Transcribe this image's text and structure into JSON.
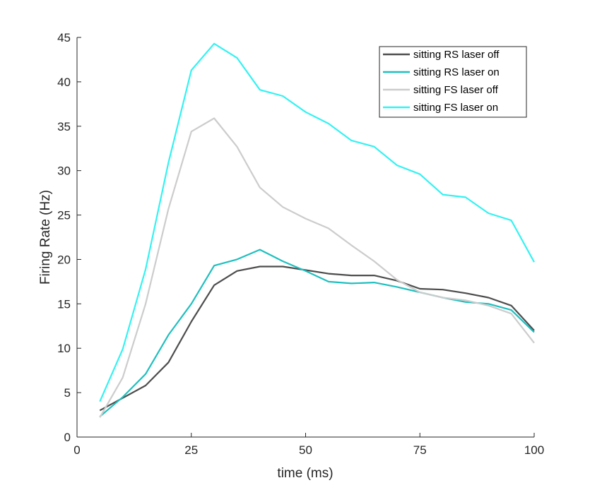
{
  "chart_data": {
    "type": "line",
    "title": "",
    "xlabel": "time (ms)",
    "ylabel": "Firing Rate (Hz)",
    "xlim": [
      0,
      100
    ],
    "ylim": [
      0,
      45
    ],
    "xticks": [
      0,
      25,
      50,
      75,
      100
    ],
    "yticks": [
      0,
      5,
      10,
      15,
      20,
      25,
      30,
      35,
      40,
      45
    ],
    "grid": false,
    "legend_position": "top-right",
    "x": [
      5,
      10,
      15,
      20,
      25,
      30,
      35,
      40,
      45,
      50,
      55,
      60,
      65,
      70,
      75,
      80,
      85,
      90,
      95,
      100
    ],
    "series": [
      {
        "name": "sitting RS laser off",
        "color": "#4d4d4d",
        "values": [
          3.0,
          4.4,
          5.8,
          8.4,
          13.0,
          17.1,
          18.7,
          19.2,
          19.2,
          18.8,
          18.4,
          18.2,
          18.2,
          17.6,
          16.7,
          16.6,
          16.2,
          15.7,
          14.8,
          12.0
        ]
      },
      {
        "name": "sitting RS laser on",
        "color": "#1fbfbf",
        "values": [
          2.3,
          4.5,
          7.1,
          11.5,
          15.0,
          19.3,
          20.0,
          21.1,
          19.8,
          18.7,
          17.5,
          17.3,
          17.4,
          16.9,
          16.3,
          15.7,
          15.2,
          15.0,
          14.3,
          11.8
        ]
      },
      {
        "name": "sitting FS laser off",
        "color": "#cccccc",
        "values": [
          2.2,
          6.7,
          15.0,
          25.7,
          34.4,
          35.9,
          32.7,
          28.1,
          25.9,
          24.6,
          23.5,
          21.6,
          19.8,
          17.7,
          16.3,
          15.7,
          15.4,
          14.8,
          13.9,
          10.6
        ]
      },
      {
        "name": "sitting FS laser on",
        "color": "#33f2f2",
        "values": [
          4.0,
          9.9,
          18.9,
          30.9,
          41.3,
          44.3,
          42.7,
          39.1,
          38.4,
          36.6,
          35.3,
          33.4,
          32.7,
          30.6,
          29.6,
          27.3,
          27.0,
          25.2,
          24.4,
          19.7
        ]
      }
    ]
  }
}
